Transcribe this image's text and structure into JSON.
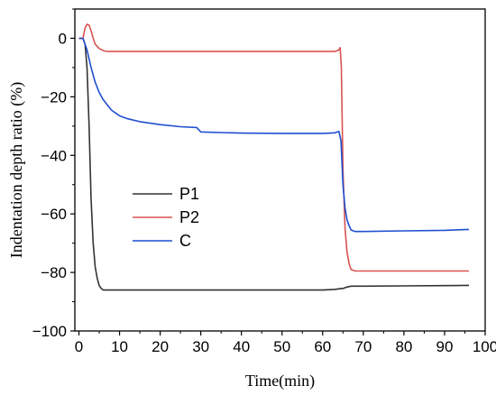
{
  "chart_data": {
    "type": "line",
    "xlabel": "Time(min)",
    "ylabel": "Indentation depth ratio (%)",
    "xlim": [
      -1,
      100
    ],
    "ylim": [
      -100,
      10
    ],
    "xticks": [
      0,
      10,
      20,
      30,
      40,
      50,
      60,
      70,
      80,
      90,
      100
    ],
    "yticks": [
      0,
      -20,
      -40,
      -60,
      -80,
      -100
    ],
    "ytick_labels": [
      "0",
      "−20",
      "−40",
      "−60",
      "−80",
      "−100"
    ],
    "grid": false,
    "legend_position": "center-left",
    "series": [
      {
        "name": "P1",
        "color": "#333333",
        "x": [
          0,
          1,
          1.5,
          2,
          2.5,
          3,
          3.5,
          4,
          4.5,
          5,
          5.5,
          6,
          6.5,
          7,
          10,
          20,
          30,
          40,
          50,
          60,
          63,
          64.5,
          65,
          66,
          67,
          70,
          80,
          90,
          96
        ],
        "y": [
          0,
          0,
          -2,
          -10,
          -30,
          -55,
          -70,
          -78,
          -82,
          -84.5,
          -85.5,
          -86,
          -86,
          -86,
          -86,
          -86,
          -86,
          -86,
          -86,
          -86,
          -85.8,
          -85.5,
          -85.5,
          -85,
          -84.7,
          -84.7,
          -84.6,
          -84.5,
          -84.4
        ]
      },
      {
        "name": "P2",
        "color": "#d9534f",
        "x": [
          0,
          1,
          1.5,
          2,
          2.5,
          3,
          3.5,
          4,
          5,
          6,
          7,
          10,
          20,
          30,
          40,
          50,
          60,
          63,
          64,
          64.3,
          64.6,
          65,
          65.5,
          66,
          66.5,
          67,
          68,
          70,
          80,
          90,
          96
        ],
        "y": [
          0,
          0,
          3.5,
          4.8,
          4.5,
          2.5,
          0,
          -2,
          -3.5,
          -4.2,
          -4.5,
          -4.5,
          -4.5,
          -4.5,
          -4.5,
          -4.5,
          -4.5,
          -4.5,
          -4,
          -3.2,
          -10,
          -45,
          -65,
          -73,
          -77,
          -79,
          -79.5,
          -79.5,
          -79.5,
          -79.5,
          -79.5
        ]
      },
      {
        "name": "C",
        "color": "#1f4fd1",
        "x": [
          0,
          1,
          2,
          3,
          4,
          5,
          6,
          8,
          10,
          12,
          15,
          20,
          25,
          29,
          30,
          35,
          40,
          50,
          60,
          63,
          64,
          64.5,
          65,
          65.5,
          66,
          66.5,
          67,
          68,
          70,
          80,
          90,
          96
        ],
        "y": [
          0,
          0,
          -4,
          -10,
          -15,
          -18.5,
          -21,
          -24.5,
          -26.5,
          -27.5,
          -28.5,
          -29.5,
          -30.2,
          -30.5,
          -32,
          -32.2,
          -32.4,
          -32.5,
          -32.5,
          -32.3,
          -31.8,
          -35,
          -50,
          -58,
          -62,
          -64,
          -65.5,
          -66,
          -66,
          -65.8,
          -65.6,
          -65.3
        ]
      }
    ]
  }
}
